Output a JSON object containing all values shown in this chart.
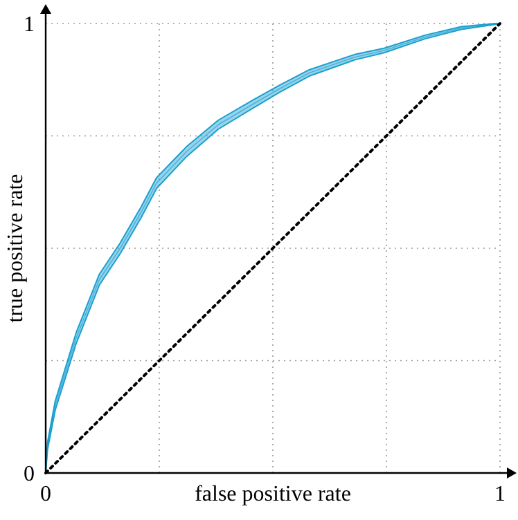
{
  "chart_data": {
    "type": "line",
    "xlabel": "false positive rate",
    "ylabel": "true positive rate",
    "xlim": [
      0,
      1
    ],
    "ylim": [
      0,
      1
    ],
    "xticks": [
      0,
      {
        "value": 0.25,
        "label": null
      },
      {
        "value": 0.5,
        "label": null
      },
      {
        "value": 0.75,
        "label": null
      },
      1
    ],
    "yticks": [
      0,
      {
        "value": 0.25,
        "label": null
      },
      {
        "value": 0.5,
        "label": null
      },
      {
        "value": 0.75,
        "label": null
      },
      1
    ],
    "grid": true,
    "series": [
      {
        "color": "#1a9fd0",
        "x": [
          0,
          0.004,
          0.021,
          0.067,
          0.118,
          0.164,
          0.21,
          0.244,
          0.31,
          0.38,
          0.455,
          0.515,
          0.58,
          0.68,
          0.745,
          0.835,
          0.915,
          0.99,
          1
        ],
        "values": [
          0,
          0.06,
          0.15,
          0.3,
          0.43,
          0.5,
          0.58,
          0.645,
          0.715,
          0.775,
          0.82,
          0.855,
          0.89,
          0.925,
          0.94,
          0.97,
          0.99,
          1,
          1
        ],
        "lower": [
          0,
          0.052,
          0.14,
          0.288,
          0.418,
          0.488,
          0.568,
          0.633,
          0.704,
          0.765,
          0.811,
          0.847,
          0.883,
          0.919,
          0.935,
          0.966,
          0.987,
          0.998,
          1
        ],
        "upper": [
          0,
          0.068,
          0.16,
          0.312,
          0.442,
          0.512,
          0.592,
          0.657,
          0.726,
          0.785,
          0.829,
          0.863,
          0.897,
          0.931,
          0.945,
          0.974,
          0.993,
          1,
          1
        ]
      },
      {
        "color": "#000000",
        "line_style": "dotted",
        "x": [
          0,
          1
        ],
        "values": [
          0,
          1
        ]
      }
    ]
  }
}
